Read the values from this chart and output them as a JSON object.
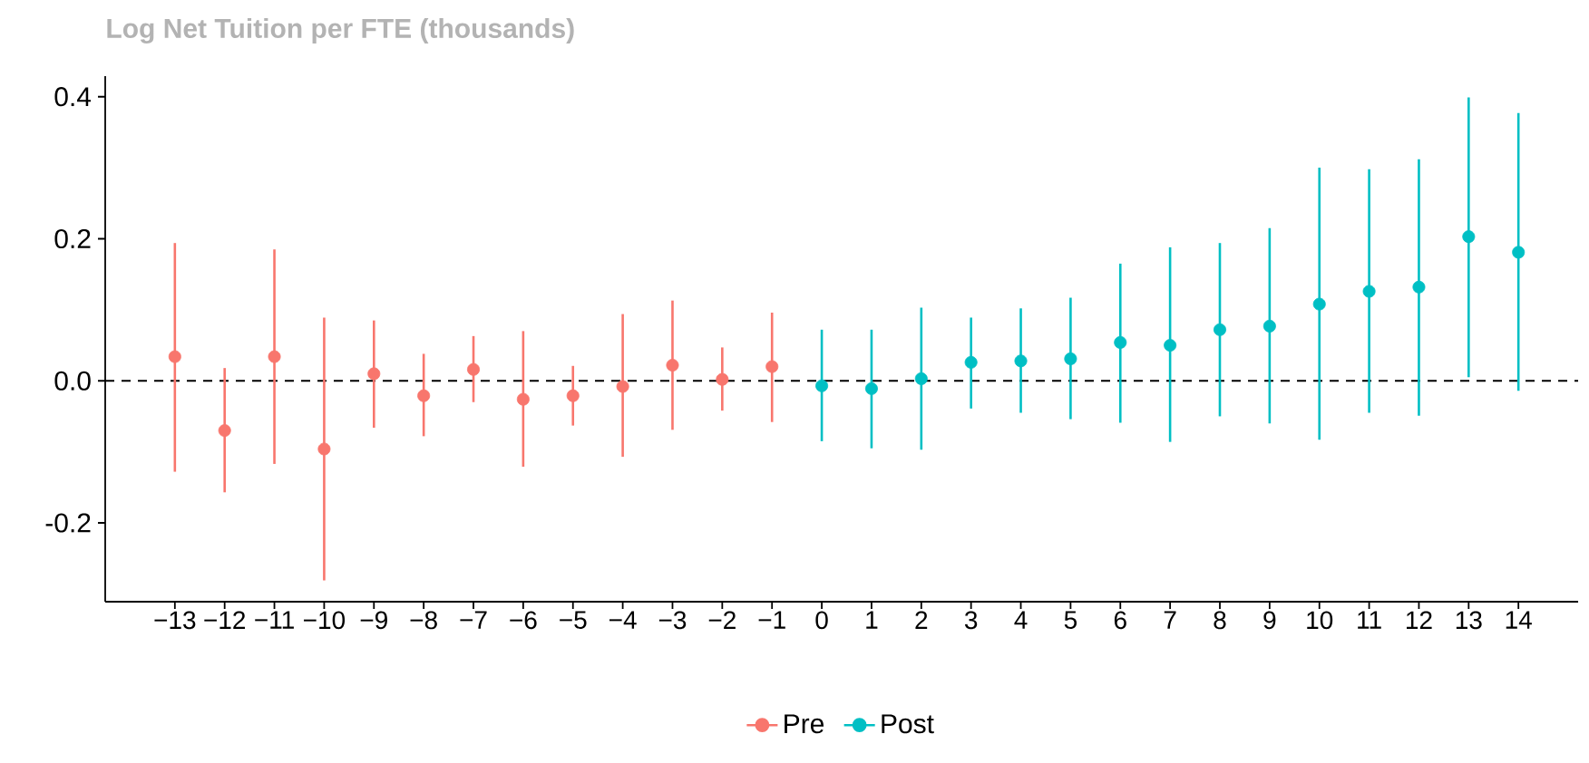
{
  "chart_data": {
    "type": "scatter",
    "title": "Log Net Tuition per FTE (thousands)",
    "marker": "circle",
    "legend": "bottom",
    "xlim": [
      -14.4,
      15.2
    ],
    "ylim": [
      -0.311,
      0.429
    ],
    "xticks": [
      {
        "value": -13,
        "label": "−13"
      },
      {
        "value": -12,
        "label": "−12"
      },
      {
        "value": -11,
        "label": "−11"
      },
      {
        "value": -10,
        "label": "−10"
      },
      {
        "value": -9,
        "label": "−9"
      },
      {
        "value": -8,
        "label": "−8"
      },
      {
        "value": -7,
        "label": "−7"
      },
      {
        "value": -6,
        "label": "−6"
      },
      {
        "value": -5,
        "label": "−5"
      },
      {
        "value": -4,
        "label": "−4"
      },
      {
        "value": -3,
        "label": "−3"
      },
      {
        "value": -2,
        "label": "−2"
      },
      {
        "value": -1,
        "label": "−1"
      },
      0,
      1,
      2,
      3,
      4,
      5,
      6,
      7,
      8,
      9,
      10,
      11,
      12,
      13,
      14
    ],
    "yticks": [
      {
        "value": -0.2,
        "label": "-0.2"
      },
      {
        "value": 0,
        "label": "0.0"
      },
      {
        "value": 0.2,
        "label": "0.2"
      },
      {
        "value": 0.4,
        "label": "0.4"
      }
    ],
    "ref_lines": [
      {
        "axis": "y",
        "value": 0,
        "line_style": "dashed",
        "color": "#000000"
      }
    ],
    "series": [
      {
        "name": "Pre",
        "color": "#f8766d",
        "x": [
          -13,
          -12,
          -11,
          -10,
          -9,
          -8,
          -7,
          -6,
          -5,
          -4,
          -3,
          -2,
          -1
        ],
        "values": [
          0.034,
          -0.07,
          0.034,
          -0.096,
          0.01,
          -0.021,
          0.016,
          -0.026,
          -0.021,
          -0.008,
          0.022,
          0.002,
          0.02
        ],
        "errors": [
          [
            -0.128,
            0.194
          ],
          [
            -0.157,
            0.018
          ],
          [
            -0.117,
            0.185
          ],
          [
            -0.281,
            0.089
          ],
          [
            -0.066,
            0.085
          ],
          [
            -0.078,
            0.038
          ],
          [
            -0.03,
            0.063
          ],
          [
            -0.121,
            0.07
          ],
          [
            -0.063,
            0.021
          ],
          [
            -0.107,
            0.094
          ],
          [
            -0.069,
            0.113
          ],
          [
            -0.042,
            0.047
          ],
          [
            -0.058,
            0.096
          ]
        ]
      },
      {
        "name": "Post",
        "color": "#00bfc4",
        "x": [
          0,
          1,
          2,
          3,
          4,
          5,
          6,
          7,
          8,
          9,
          10,
          11,
          12,
          13,
          14
        ],
        "values": [
          -0.007,
          -0.011,
          0.003,
          0.026,
          0.028,
          0.031,
          0.054,
          0.05,
          0.072,
          0.077,
          0.108,
          0.126,
          0.132,
          0.203,
          0.181
        ],
        "errors": [
          [
            -0.085,
            0.072
          ],
          [
            -0.095,
            0.072
          ],
          [
            -0.097,
            0.103
          ],
          [
            -0.039,
            0.089
          ],
          [
            -0.045,
            0.102
          ],
          [
            -0.054,
            0.117
          ],
          [
            -0.059,
            0.165
          ],
          [
            -0.086,
            0.188
          ],
          [
            -0.05,
            0.194
          ],
          [
            -0.06,
            0.215
          ],
          [
            -0.083,
            0.3
          ],
          [
            -0.045,
            0.298
          ],
          [
            -0.049,
            0.312
          ],
          [
            0.005,
            0.399
          ],
          [
            -0.014,
            0.377
          ]
        ]
      }
    ]
  }
}
